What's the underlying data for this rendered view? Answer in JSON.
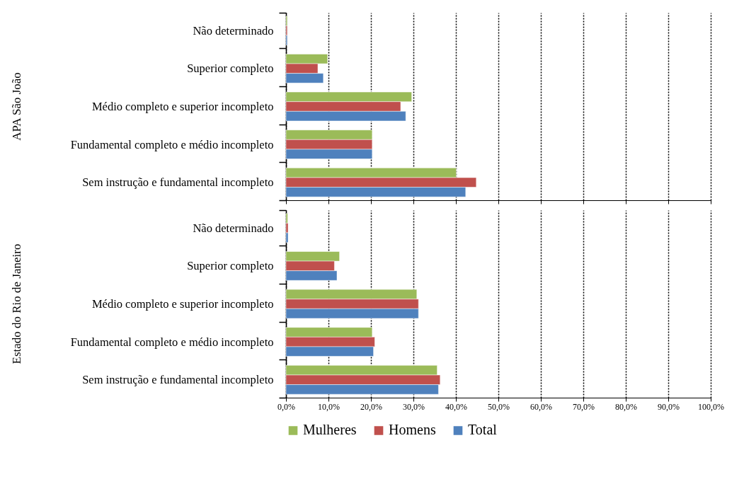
{
  "chart_data": [
    {
      "type": "bar",
      "orientation": "horizontal",
      "ylabel": "APA São João",
      "categories": [
        "Não determinado",
        "Superior completo",
        "Médio completo e superior incompleto",
        "Fundamental completo e médio incompleto",
        "Sem instrução e fundamental incompleto"
      ],
      "series": [
        {
          "color": "#9bbb59",
          "values": [
            0.3,
            9.8,
            29.6,
            20.3,
            40.1
          ]
        },
        {
          "color": "#c0504d",
          "values": [
            0.3,
            7.5,
            27.0,
            20.3,
            44.8
          ]
        },
        {
          "color": "#4f81bd",
          "values": [
            0.3,
            8.8,
            28.2,
            20.3,
            42.3
          ]
        }
      ],
      "xlim": [
        0,
        100
      ],
      "xticks": [
        {
          "value": 0,
          "label": null
        },
        {
          "value": 10,
          "label": null
        },
        {
          "value": 20,
          "label": null
        },
        {
          "value": 30,
          "label": null
        },
        {
          "value": 40,
          "label": null
        },
        {
          "value": 50,
          "label": null
        },
        {
          "value": 60,
          "label": null
        },
        {
          "value": 70,
          "label": null
        },
        {
          "value": 80,
          "label": null
        },
        {
          "value": 90,
          "label": null
        },
        {
          "value": 100,
          "label": null
        }
      ],
      "grid": "x",
      "tick_labels": "y"
    },
    {
      "type": "bar",
      "orientation": "horizontal",
      "ylabel": "Estado do Rio de Janeiro",
      "categories": [
        "Não determinado",
        "Superior completo",
        "Médio completo e superior incompleto",
        "Fundamental completo e médio incompleto",
        "Sem instrução e fundamental incompleto"
      ],
      "series": [
        {
          "name": "Mulheres",
          "color": "#9bbb59",
          "values": [
            0.4,
            12.6,
            30.8,
            20.3,
            35.6
          ]
        },
        {
          "name": "Homens",
          "color": "#c0504d",
          "values": [
            0.5,
            11.4,
            31.2,
            20.9,
            36.3
          ]
        },
        {
          "name": "Total",
          "color": "#4f81bd",
          "values": [
            0.5,
            12.0,
            31.2,
            20.6,
            35.9
          ]
        }
      ],
      "xlim": [
        0,
        100
      ],
      "xticks": [
        {
          "value": 0,
          "label": "0,0%"
        },
        {
          "value": 10,
          "label": "10,0%"
        },
        {
          "value": 20,
          "label": "20,0%"
        },
        {
          "value": 30,
          "label": "30,0%"
        },
        {
          "value": 40,
          "label": "40,0%"
        },
        {
          "value": 50,
          "label": "50,0%"
        },
        {
          "value": 60,
          "label": "60,0%"
        },
        {
          "value": 70,
          "label": "70,0%"
        },
        {
          "value": 80,
          "label": "80,0%"
        },
        {
          "value": 90,
          "label": "90,0%"
        },
        {
          "value": 100,
          "label": "100,0%"
        }
      ],
      "grid": "x",
      "legend": "bottom"
    }
  ]
}
